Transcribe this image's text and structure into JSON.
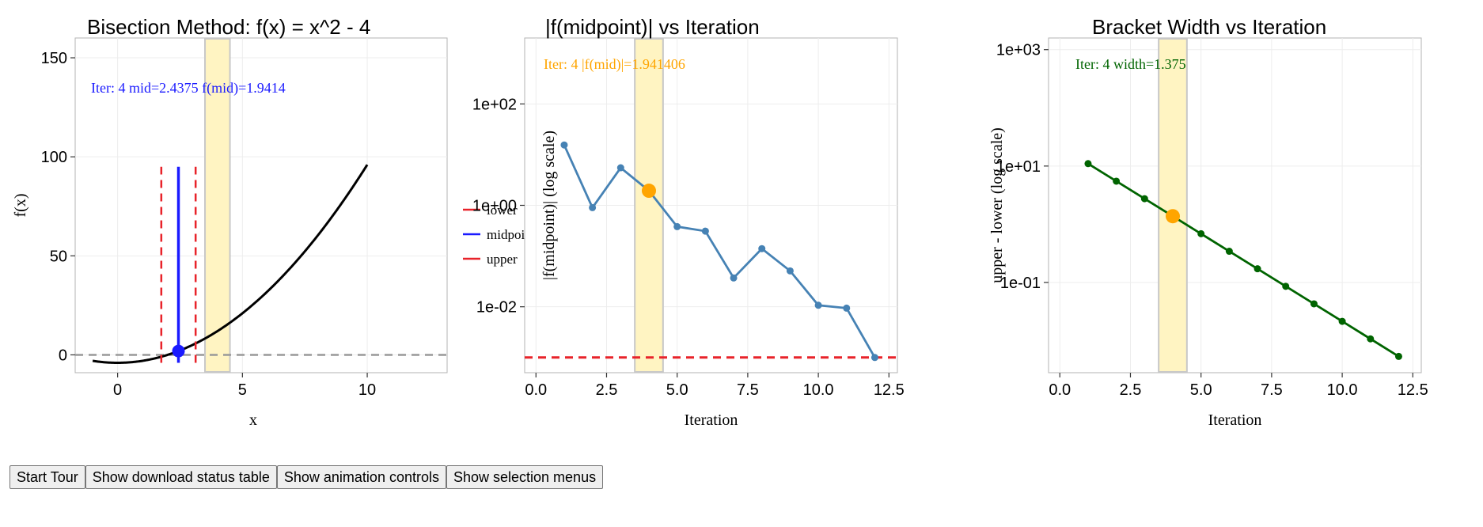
{
  "chart_data": [
    {
      "type": "line",
      "title": "Bisection Method: f(x) = x^2 - 4",
      "xlabel": "x",
      "ylabel": "f(x)",
      "xlim": [
        -1.7,
        13.2
      ],
      "ylim": [
        -9,
        160
      ],
      "x_ticks": [
        0,
        5,
        10
      ],
      "x_tick_labels": [
        "0",
        "5",
        "10"
      ],
      "y_ticks": [
        0,
        50,
        100,
        150
      ],
      "y_tick_labels": [
        "0",
        "50",
        "100",
        "150"
      ],
      "curve": {
        "function": "x^2 - 4",
        "x_range": [
          -1,
          10
        ],
        "color": "#000000"
      },
      "zero_line": {
        "y": 0,
        "color": "#999999",
        "style": "dashed"
      },
      "highlight_band": {
        "x_range": [
          3.5,
          4.5
        ],
        "color": "#fff4c2"
      },
      "bracket_lines": [
        {
          "name": "lower",
          "x": 1.75,
          "y_range": [
            -4,
            95
          ],
          "color": "#e8232a"
        },
        {
          "name": "midpoint",
          "x": 2.4375,
          "y_range": [
            -4,
            95
          ],
          "color": "#1a1aff"
        },
        {
          "name": "upper",
          "x": 3.125,
          "y_range": [
            -4,
            95
          ],
          "color": "#e8232a"
        }
      ],
      "marker": {
        "x": 2.4375,
        "y": 1.9414,
        "color": "#1a1aff"
      },
      "legend": {
        "position": "right",
        "entries": [
          {
            "label": "lower",
            "color": "#e8232a"
          },
          {
            "label": "midpoint",
            "color": "#1a1aff"
          },
          {
            "label": "upper",
            "color": "#e8232a"
          }
        ]
      },
      "annotation": {
        "text": "Iter: 4 mid=2.4375 f(mid)=1.9414",
        "color": "#1a1aff",
        "position": "top-left"
      }
    },
    {
      "type": "line",
      "title": "|f(midpoint)| vs Iteration",
      "xlabel": "Iteration",
      "ylabel": "|f(midpoint)| (log scale)",
      "yscale": "log",
      "xlim": [
        -0.4,
        12.8
      ],
      "ylim_log10": [
        -3.3,
        3.3
      ],
      "x_ticks": [
        0,
        2.5,
        5,
        7.5,
        10,
        12.5
      ],
      "x_tick_labels": [
        "0.0",
        "2.5",
        "5.0",
        "7.5",
        "10.0",
        "12.5"
      ],
      "y_ticks_log10": [
        2,
        0,
        -2
      ],
      "y_tick_labels": [
        "1e+02",
        "1e+00",
        "1e-02"
      ],
      "series": [
        {
          "name": "|f(mid)|",
          "color": "#4682b4",
          "x": [
            1,
            2,
            3,
            4,
            5,
            6,
            7,
            8,
            9,
            10,
            11,
            12
          ],
          "y": [
            15.5,
            0.9,
            5.5,
            1.941406,
            0.38,
            0.31,
            0.037,
            0.14,
            0.051,
            0.0107,
            0.0094,
            0.001
          ]
        }
      ],
      "threshold_line": {
        "y": 0.001,
        "color": "#e8232a",
        "style": "dashed"
      },
      "highlight_band": {
        "x_range": [
          3.5,
          4.5
        ],
        "color": "#fff4c2"
      },
      "marker": {
        "x": 4,
        "y": 1.941406,
        "color": "#ffa500"
      },
      "annotation": {
        "text": "Iter: 4 |f(mid)|=1.941406",
        "color": "#ffa500",
        "position": "top-left"
      }
    },
    {
      "type": "line",
      "title": "Bracket Width vs Iteration",
      "xlabel": "Iteration",
      "ylabel": "upper - lower (log scale)",
      "yscale": "log",
      "xlim": [
        -0.4,
        12.8
      ],
      "ylim_log10": [
        -2.55,
        3.2
      ],
      "x_ticks": [
        0,
        2.5,
        5,
        7.5,
        10,
        12.5
      ],
      "x_tick_labels": [
        "0.0",
        "2.5",
        "5.0",
        "7.5",
        "10.0",
        "12.5"
      ],
      "y_ticks_log10": [
        3,
        1,
        -1
      ],
      "y_tick_labels": [
        "1e+03",
        "1e+01",
        "1e-01"
      ],
      "series": [
        {
          "name": "width",
          "color": "#006400",
          "x": [
            1,
            2,
            3,
            4,
            5,
            6,
            7,
            8,
            9,
            10,
            11,
            12
          ],
          "y": [
            11,
            5.5,
            2.75,
            1.375,
            0.6875,
            0.34375,
            0.171875,
            0.0859375,
            0.04296875,
            0.021484375,
            0.0107421875,
            0.00537109375
          ]
        }
      ],
      "highlight_band": {
        "x_range": [
          3.5,
          4.5
        ],
        "color": "#fff4c2"
      },
      "marker": {
        "x": 4,
        "y": 1.375,
        "color": "#ffa500"
      },
      "annotation": {
        "text": "Iter: 4 width=1.375",
        "color": "#006400",
        "position": "top-left"
      }
    }
  ],
  "controls": {
    "start_tour": "Start Tour",
    "download_status": "Show download status table",
    "animation_controls": "Show animation controls",
    "selection_menus": "Show selection menus"
  }
}
